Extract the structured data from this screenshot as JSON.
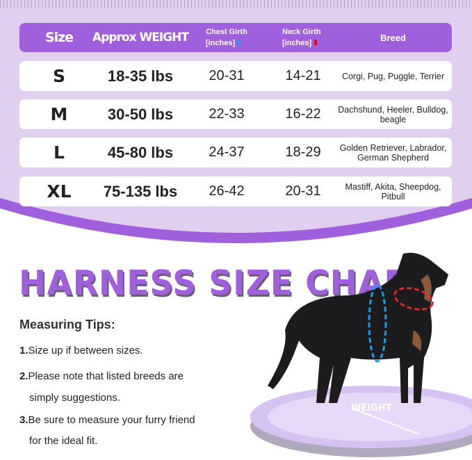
{
  "colors": {
    "accent": "#a05fdc",
    "panel": "#e0cfee",
    "chest_marker": "#1a9cf0",
    "neck_marker": "#e01010"
  },
  "table": {
    "headers": {
      "size": "Size",
      "weight": "Approx WEIGHT",
      "chest_1": "Chest Girth",
      "chest_2": "[inches]",
      "neck_1": "Neck Girth",
      "neck_2": "[inches]",
      "breed": "Breed"
    },
    "rows": [
      {
        "size": "S",
        "weight": "18-35 lbs",
        "chest": "20-31",
        "neck": "14-21",
        "breed": "Corgi, Pug, Puggle, Terrier"
      },
      {
        "size": "M",
        "weight": "30-50 lbs",
        "chest": "22-33",
        "neck": "16-22",
        "breed": "Dachshund, Heeler, Bulldog, beagle"
      },
      {
        "size": "L",
        "weight": "45-80 lbs",
        "chest": "24-37",
        "neck": "18-29",
        "breed": "Golden Retriever, Labrador, German Shepherd"
      },
      {
        "size": "XL",
        "weight": "75-135 lbs",
        "chest": "26-42",
        "neck": "20-31",
        "breed": "Mastiff, Akita, Sheepdog,  Pitbull"
      }
    ]
  },
  "title": "HARNESS SIZE CHART",
  "tips": {
    "heading": "Measuring Tips:",
    "items": [
      {
        "num": "1.",
        "text": "Size up if between sizes."
      },
      {
        "num": "2.",
        "text": "Please note that listed breeds are",
        "cont": "simply suggestions."
      },
      {
        "num": "3.",
        "text": "Be sure to measure your furry friend",
        "cont": "for the ideal fit."
      }
    ]
  },
  "scale_label": "WEIGHT"
}
